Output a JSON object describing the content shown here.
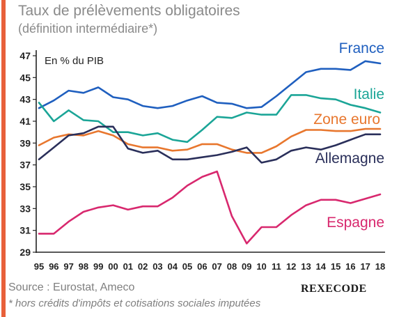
{
  "header": {
    "title": "Taux de prélèvements obligatoires",
    "subtitle": "(définition intermédiaire*)"
  },
  "footer": {
    "source": "Source : Eurostat, Ameco",
    "brand": "REXECODE",
    "footnote": "* hors crédits d'impôts et cotisations sociales imputées"
  },
  "colors": {
    "france": "#1f5fbf",
    "italie": "#1ba597",
    "zone_euro": "#e8772e",
    "allemagne": "#2a2f5a",
    "espagne": "#d8286e",
    "accent": "#e8603a",
    "axis": "#222222"
  },
  "chart_data": {
    "type": "line",
    "unit_label": "En % du PIB",
    "ylim": [
      29,
      47
    ],
    "yticks": [
      29,
      31,
      33,
      35,
      37,
      39,
      41,
      43,
      45,
      47
    ],
    "x": [
      "95",
      "96",
      "97",
      "98",
      "99",
      "00",
      "01",
      "02",
      "03",
      "04",
      "05",
      "06",
      "07",
      "08",
      "09",
      "10",
      "11",
      "12",
      "13",
      "14",
      "15",
      "16",
      "17",
      "18"
    ],
    "grid": false,
    "legend": "inline labels at right end of each line",
    "series": [
      {
        "name": "France",
        "key": "france",
        "values": [
          42.2,
          42.9,
          43.8,
          43.6,
          44.1,
          43.2,
          43.0,
          42.4,
          42.2,
          42.4,
          42.9,
          43.3,
          42.7,
          42.6,
          42.2,
          42.3,
          43.3,
          44.4,
          45.5,
          45.8,
          45.8,
          45.7,
          46.5,
          46.3
        ]
      },
      {
        "name": "Italie",
        "key": "italie",
        "values": [
          42.7,
          41.0,
          42.0,
          41.1,
          41.0,
          40.0,
          40.0,
          39.7,
          39.9,
          39.3,
          39.1,
          40.2,
          41.4,
          41.3,
          41.8,
          41.6,
          41.6,
          43.4,
          43.4,
          43.1,
          43.0,
          42.5,
          42.2,
          41.8
        ]
      },
      {
        "name": "Zone euro",
        "key": "zone_euro",
        "values": [
          38.8,
          39.5,
          39.8,
          39.7,
          40.1,
          39.7,
          38.9,
          38.6,
          38.6,
          38.3,
          38.4,
          38.9,
          38.9,
          38.4,
          38.1,
          38.1,
          38.7,
          39.6,
          40.2,
          40.2,
          40.1,
          40.1,
          40.3,
          40.3
        ]
      },
      {
        "name": "Allemagne",
        "key": "allemagne",
        "values": [
          37.5,
          38.6,
          39.7,
          39.9,
          40.5,
          40.5,
          38.5,
          38.1,
          38.3,
          37.5,
          37.5,
          37.7,
          37.9,
          38.2,
          38.6,
          37.2,
          37.5,
          38.3,
          38.6,
          38.4,
          38.8,
          39.3,
          39.8,
          39.8
        ]
      },
      {
        "name": "Espagne",
        "key": "espagne",
        "values": [
          30.7,
          30.7,
          31.8,
          32.7,
          33.1,
          33.3,
          32.9,
          33.2,
          33.2,
          34.0,
          35.1,
          35.9,
          36.4,
          32.3,
          29.8,
          31.3,
          31.3,
          32.4,
          33.3,
          33.8,
          33.8,
          33.5,
          33.9,
          34.3
        ]
      }
    ]
  }
}
